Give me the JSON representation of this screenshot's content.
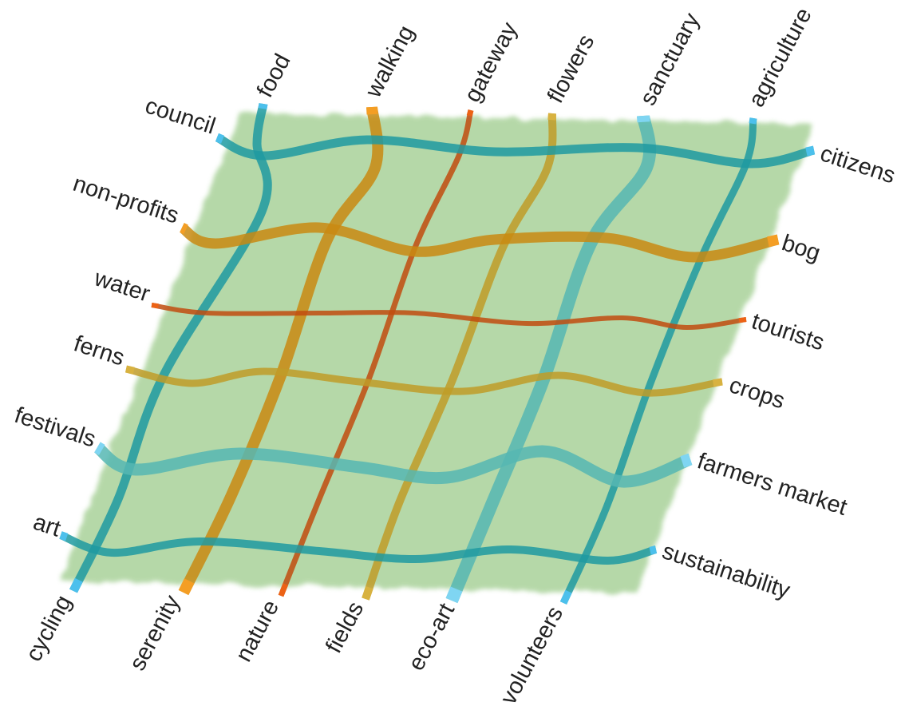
{
  "colors": {
    "field": "#a9d29a",
    "teal": "#1f9aa1",
    "teal_end": "#4cc0ec",
    "amber": "#c98a12",
    "amber_end": "#f49e24",
    "rust": "#c14c0f",
    "rust_end": "#ec6215",
    "olive": "#c09c28",
    "olive_end": "#d8b240",
    "seafoam": "#56b7b3",
    "seafoam_end": "#7fd5f2"
  },
  "top_labels": [
    "food",
    "walking",
    "gateway",
    "flowers",
    "sanctuary",
    "agriculture"
  ],
  "bottom_labels": [
    "cycling",
    "serenity",
    "nature",
    "fields",
    "eco-art",
    "volunteers"
  ],
  "left_labels": [
    "council",
    "non-profits",
    "water",
    "ferns",
    "festivals",
    "art"
  ],
  "right_labels": [
    "citizens",
    "bog",
    "tourists",
    "crops",
    "farmers market",
    "sustainability"
  ],
  "threads": {
    "vertical": [
      {
        "top": "food",
        "bottom": "cycling",
        "color": "teal"
      },
      {
        "top": "walking",
        "bottom": "serenity",
        "color": "amber"
      },
      {
        "top": "gateway",
        "bottom": "nature",
        "color": "rust"
      },
      {
        "top": "flowers",
        "bottom": "fields",
        "color": "olive"
      },
      {
        "top": "sanctuary",
        "bottom": "eco-art",
        "color": "seafoam"
      },
      {
        "top": "agriculture",
        "bottom": "volunteers",
        "color": "teal"
      }
    ],
    "horizontal": [
      {
        "left": "council",
        "right": "citizens",
        "color": "teal"
      },
      {
        "left": "non-profits",
        "right": "bog",
        "color": "amber"
      },
      {
        "left": "water",
        "right": "tourists",
        "color": "rust"
      },
      {
        "left": "ferns",
        "right": "crops",
        "color": "olive"
      },
      {
        "left": "festivals",
        "right": "farmers market",
        "color": "seafoam"
      },
      {
        "left": "art",
        "right": "sustainability",
        "color": "teal"
      }
    ]
  }
}
